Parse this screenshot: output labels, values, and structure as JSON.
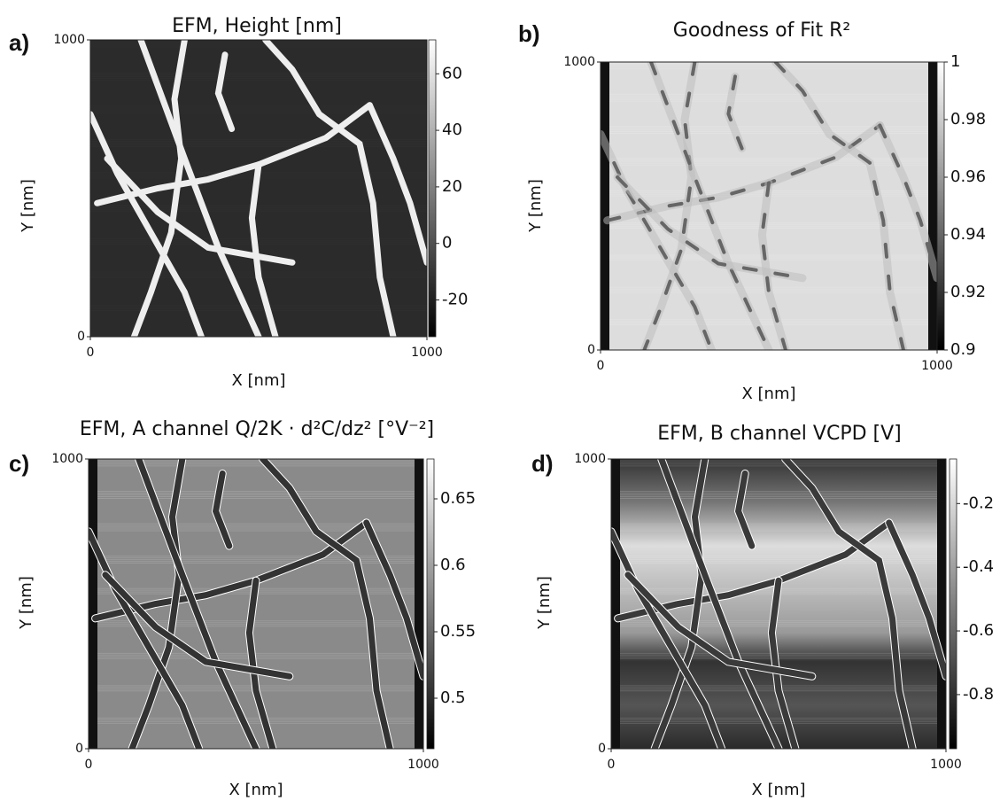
{
  "chart_data": [
    {
      "type": "heatmap",
      "panel": "a)",
      "title": "EFM, Height [nm]",
      "x_label": "X [nm]",
      "y_label": "Y [nm]",
      "xlim": [
        0,
        1000
      ],
      "xticks": [
        0,
        1000
      ],
      "ylim": [
        0,
        1000
      ],
      "yticks": [
        0,
        1000
      ],
      "clim": [
        -33,
        72
      ],
      "cticks": [
        -20,
        0,
        20,
        40,
        60
      ]
    },
    {
      "type": "heatmap",
      "panel": "b)",
      "title": "Goodness of Fit R²",
      "x_label": "X [nm]",
      "y_label": "Y [nm]",
      "xlim": [
        0,
        1000
      ],
      "xticks": [
        0,
        1000
      ],
      "ylim": [
        0,
        1000
      ],
      "yticks": [
        0,
        1000
      ],
      "clim": [
        0.9,
        1
      ],
      "cticks": [
        0.9,
        0.92,
        0.94,
        0.96,
        0.98,
        1
      ]
    },
    {
      "type": "heatmap",
      "panel": "c)",
      "title": "EFM, A channel Q/2K · d²C/dz² [°V⁻²]",
      "x_label": "X [nm]",
      "y_label": "Y [nm]",
      "xlim": [
        0,
        1000
      ],
      "xticks": [
        0,
        1000
      ],
      "ylim": [
        0,
        1000
      ],
      "yticks": [
        0,
        1000
      ],
      "clim": [
        0.462,
        0.68
      ],
      "cticks": [
        0.5,
        0.55,
        0.6,
        0.65
      ]
    },
    {
      "type": "heatmap",
      "panel": "d)",
      "title": "EFM, B channel VCPD [V]",
      "x_label": "X [nm]",
      "y_label": "Y [nm]",
      "xlim": [
        0,
        1000
      ],
      "xticks": [
        0,
        1000
      ],
      "ylim": [
        0,
        1000
      ],
      "yticks": [
        0,
        1000
      ],
      "clim": [
        -0.97,
        -0.06
      ],
      "cticks": [
        -0.8,
        -0.6,
        -0.4,
        -0.2
      ]
    }
  ]
}
